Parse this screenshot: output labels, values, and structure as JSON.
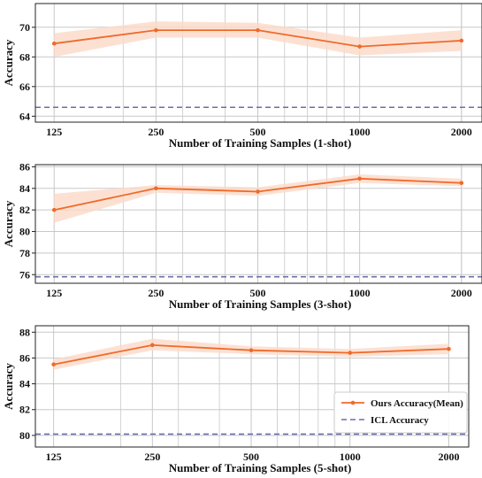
{
  "colors": {
    "ours_line": "#f06a2a",
    "ours_band": "#fbd9c8",
    "icl_line": "#6b6fa8",
    "grid": "#c8c8c8",
    "axes": "#222222"
  },
  "legend": {
    "ours_label": "Ours Accuracy(Mean)",
    "icl_label": "ICL Accuracy",
    "placement": "lower-right of third panel"
  },
  "chart_data": [
    {
      "type": "line",
      "xlabel": "Number of Training Samples   (1-shot)",
      "ylabel": "Accuracy",
      "x_scale": "log",
      "categories": [
        "125",
        "250",
        "500",
        "1000",
        "2000"
      ],
      "x": [
        125,
        250,
        500,
        1000,
        2000
      ],
      "xlim": [
        110,
        2300
      ],
      "ylim": [
        63.6,
        71.6
      ],
      "yticks": [
        64,
        66,
        68,
        70
      ],
      "grid": true,
      "series": [
        {
          "name": "Ours Accuracy(Mean)",
          "values": [
            68.9,
            69.8,
            69.8,
            68.7,
            69.1
          ],
          "band_low": [
            68.0,
            69.3,
            69.3,
            68.1,
            68.4
          ],
          "band_high": [
            69.6,
            70.4,
            70.3,
            69.3,
            69.8
          ]
        },
        {
          "name": "ICL Accuracy",
          "constant": 64.6
        }
      ]
    },
    {
      "type": "line",
      "xlabel": "Number of Training Samples   (3-shot)",
      "ylabel": "Accuracy",
      "x_scale": "log",
      "categories": [
        "125",
        "250",
        "500",
        "1000",
        "2000"
      ],
      "x": [
        125,
        250,
        500,
        1000,
        2000
      ],
      "xlim": [
        110,
        2300
      ],
      "ylim": [
        75.2,
        86.2
      ],
      "yticks": [
        76,
        78,
        80,
        82,
        84,
        86
      ],
      "grid": true,
      "series": [
        {
          "name": "Ours Accuracy(Mean)",
          "values": [
            82.0,
            84.0,
            83.7,
            84.9,
            84.5
          ],
          "band_low": [
            80.8,
            83.6,
            83.3,
            84.5,
            84.2
          ],
          "band_high": [
            83.5,
            84.3,
            84.1,
            85.3,
            84.9
          ]
        },
        {
          "name": "ICL Accuracy",
          "constant": 75.8
        }
      ]
    },
    {
      "type": "line",
      "xlabel": "Number of Training Samples   (5-shot)",
      "ylabel": "Accuracy",
      "x_scale": "log",
      "categories": [
        "125",
        "250",
        "500",
        "1000",
        "2000"
      ],
      "x": [
        125,
        250,
        500,
        1000,
        2000
      ],
      "xlim": [
        110,
        2300
      ],
      "ylim": [
        79.1,
        88.5
      ],
      "yticks": [
        80,
        82,
        84,
        86,
        88
      ],
      "grid": true,
      "series": [
        {
          "name": "Ours Accuracy(Mean)",
          "values": [
            85.5,
            87.0,
            86.6,
            86.4,
            86.7
          ],
          "band_low": [
            85.1,
            86.6,
            86.3,
            86.1,
            86.3
          ],
          "band_high": [
            85.9,
            87.5,
            86.9,
            86.7,
            87.1
          ]
        },
        {
          "name": "ICL Accuracy",
          "constant": 80.1
        }
      ]
    }
  ]
}
